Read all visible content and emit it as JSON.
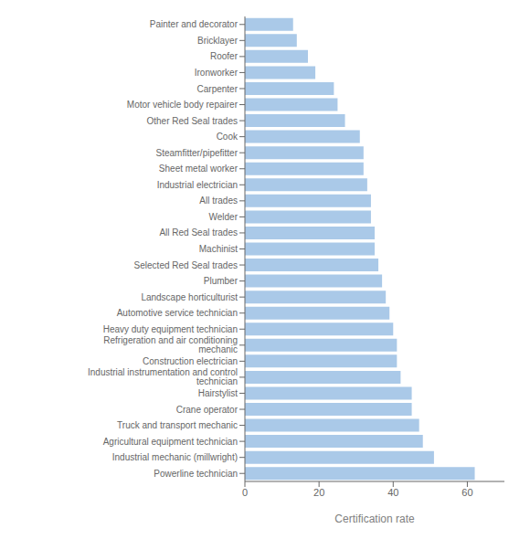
{
  "chart_data": {
    "type": "bar",
    "orientation": "horizontal",
    "xlabel": "Certification rate",
    "categories": [
      "Painter and decorator",
      "Bricklayer",
      "Roofer",
      "Ironworker",
      "Carpenter",
      "Motor vehicle body repairer",
      "Other Red Seal trades",
      "Cook",
      "Steamfitter/pipefitter",
      "Sheet metal worker",
      "Industrial electrician",
      "All trades",
      "Welder",
      "All Red Seal trades",
      "Machinist",
      "Selected Red Seal trades",
      "Plumber",
      "Landscape horticulturist",
      "Automotive service technician",
      "Heavy duty equipment technician",
      "Refrigeration and air conditioning mechanic",
      "Construction electrician",
      "Industrial instrumentation and control technician",
      "Hairstylist",
      "Crane operator",
      "Truck and transport mechanic",
      "Agricultural equipment technician",
      "Industrial mechanic (millwright)",
      "Powerline technician"
    ],
    "values": [
      13,
      14,
      17,
      19,
      24,
      25,
      27,
      31,
      32,
      32,
      33,
      34,
      34,
      35,
      35,
      36,
      37,
      38,
      39,
      40,
      41,
      41,
      42,
      45,
      45,
      47,
      48,
      51,
      62
    ],
    "color": "#aac9e8",
    "xlim": [
      0,
      70
    ],
    "xticks": [
      0,
      20,
      40,
      60
    ],
    "grid": false
  }
}
